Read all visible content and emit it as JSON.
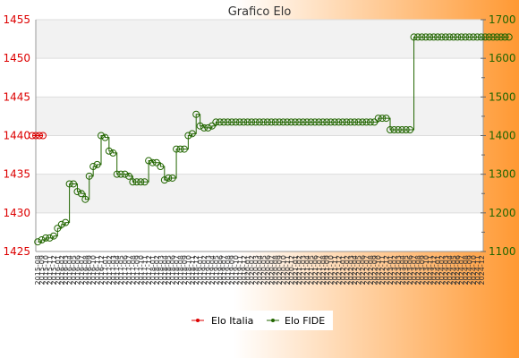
{
  "chart_data": {
    "type": "line",
    "title": "Grafico Elo",
    "background": {
      "left": "#ffffff",
      "right": "#ff9933"
    },
    "plot_bands": [
      "#f2f2f2",
      "#ffffff"
    ],
    "left_axis": {
      "color": "#dd0000",
      "min": 1425,
      "max": 1455,
      "step": 5,
      "ticks": [
        "1425",
        "1430",
        "1435",
        "1440",
        "1445",
        "1450",
        "1455"
      ]
    },
    "right_axis": {
      "color": "#226600",
      "min": 1100,
      "max": 1700,
      "step": 100,
      "ticks": [
        "1100",
        "1200",
        "1300",
        "1400",
        "1500",
        "1600",
        "1700"
      ]
    },
    "x_tick_labels": [
      "2015-08",
      "2015-09",
      "2015-10",
      "2015-11",
      "2015-12",
      "2016-01",
      "2016-02",
      "2016-03",
      "2016-04",
      "2016-05",
      "2016-06",
      "2016-07",
      "2016-08",
      "2016-09",
      "2016-10",
      "2016-11",
      "2016-12",
      "2017-01",
      "2017-02",
      "2017-03",
      "2017-04",
      "2017-05",
      "2017-06",
      "2017-07",
      "2017-08",
      "2017-09",
      "2017-10",
      "2017-11",
      "2017-12",
      "2018-01",
      "2018-02",
      "2018-03",
      "2018-04",
      "2018-05",
      "2018-06",
      "2018-07",
      "2018-08",
      "2018-09",
      "2018-10",
      "2018-11",
      "2018-12",
      "2019-01",
      "2019-02",
      "2019-03",
      "2019-04",
      "2019-05",
      "2019-06",
      "2019-07",
      "2019-08",
      "2019-09",
      "2019-10",
      "2019-11",
      "2019-12",
      "2020-01",
      "2020-02",
      "2020-03",
      "2020-04",
      "2020-05",
      "2020-06",
      "2020-07",
      "2020-08",
      "2020-09",
      "2020-10",
      "2020-11",
      "2020-12",
      "2021-01",
      "2021-02",
      "2021-03",
      "2021-04",
      "2021-05",
      "2021-06",
      "2021-07",
      "2021-08",
      "2021-09",
      "2021-10",
      "2021-11",
      "2021-12",
      "2022-01",
      "2022-02",
      "2022-03",
      "2022-04",
      "2022-05",
      "2022-06",
      "2022-07",
      "2022-08",
      "2022-09",
      "2022-10",
      "2022-11",
      "2022-12",
      "2023-01",
      "2023-02",
      "2023-03",
      "2023-04",
      "2023-05",
      "2023-06",
      "2023-07",
      "2023-08",
      "2023-09",
      "2023-10",
      "2023-11",
      "2023-12",
      "2024-01",
      "2024-02",
      "2024-03",
      "2024-04",
      "2024-05",
      "2024-06",
      "2024-07",
      "2024-08",
      "2024-09",
      "2024-10",
      "2024-11",
      "2024-12"
    ],
    "series": [
      {
        "name": "Elo Italia",
        "axis": "left",
        "color": "#dd0000",
        "values": [
          1440,
          1440,
          1440,
          1440
        ]
      },
      {
        "name": "Elo FIDE",
        "axis": "right",
        "color": "#226600",
        "values": [
          1125,
          1130,
          1135,
          1135,
          1140,
          1160,
          1170,
          1175,
          1275,
          1275,
          1255,
          1250,
          1235,
          1295,
          1320,
          1325,
          1400,
          1395,
          1360,
          1355,
          1300,
          1300,
          1300,
          1295,
          1280,
          1280,
          1280,
          1280,
          1335,
          1330,
          1330,
          1320,
          1285,
          1290,
          1290,
          1365,
          1365,
          1365,
          1400,
          1405,
          1455,
          1425,
          1420,
          1420,
          1425,
          1435,
          1435,
          1435,
          1435,
          1435,
          1435,
          1435,
          1435,
          1435,
          1435,
          1435,
          1435,
          1435,
          1435,
          1435,
          1435,
          1435,
          1435,
          1435,
          1435,
          1435,
          1435,
          1435,
          1435,
          1435,
          1435,
          1435,
          1435,
          1435,
          1435,
          1435,
          1435,
          1435,
          1435,
          1435,
          1435,
          1435,
          1435,
          1435,
          1435,
          1435,
          1445,
          1445,
          1445,
          1415,
          1415,
          1415,
          1415,
          1415,
          1415,
          1655,
          1655,
          1655,
          1655,
          1655,
          1655,
          1655,
          1655,
          1655,
          1655,
          1655,
          1655,
          1655,
          1655,
          1655,
          1655,
          1655,
          1655,
          1655,
          1655,
          1655,
          1655,
          1655,
          1655,
          1655
        ]
      }
    ],
    "legend": {
      "position": "bottom",
      "items": [
        "Elo Italia",
        "Elo FIDE"
      ]
    }
  }
}
